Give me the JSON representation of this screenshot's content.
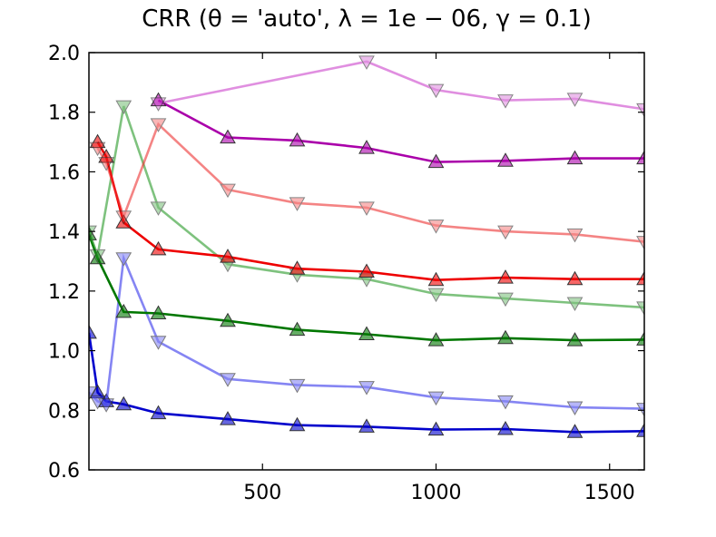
{
  "chart_data": {
    "type": "line",
    "title": "CRR (θ = 'auto', λ = 1e − 06, γ = 0.1)",
    "xlabel": "",
    "ylabel": "",
    "xlim": [
      0,
      1600
    ],
    "ylim": [
      0.6,
      2.0
    ],
    "x_ticks": [
      500,
      1000,
      1500
    ],
    "y_ticks": [
      0.6,
      0.8,
      1.0,
      1.2,
      1.4,
      1.6,
      1.8,
      2.0
    ],
    "grid": false,
    "legend": "none",
    "series": [
      {
        "color": "#0000cc",
        "marker": "triangle-up",
        "alpha": 1.0,
        "x": [
          0,
          25,
          50,
          100,
          200,
          400,
          600,
          800,
          1000,
          1200,
          1400,
          1600
        ],
        "y": [
          1.06,
          0.86,
          0.83,
          0.82,
          0.79,
          0.77,
          0.75,
          0.745,
          0.735,
          0.737,
          0.727,
          0.73
        ]
      },
      {
        "color": "#4444ee",
        "marker": "triangle-down",
        "alpha": 0.65,
        "x": [
          0,
          25,
          50,
          100,
          200,
          400,
          600,
          800,
          1000,
          1200,
          1400,
          1600
        ],
        "y": [
          0.86,
          0.83,
          0.82,
          1.31,
          1.03,
          0.905,
          0.885,
          0.878,
          0.843,
          0.83,
          0.81,
          0.805
        ]
      },
      {
        "color": "#007700",
        "marker": "triangle-up",
        "alpha": 1.0,
        "x": [
          0,
          25,
          100,
          200,
          400,
          600,
          800,
          1000,
          1200,
          1400,
          1600
        ],
        "y": [
          1.39,
          1.31,
          1.13,
          1.125,
          1.1,
          1.07,
          1.055,
          1.035,
          1.042,
          1.035,
          1.037
        ]
      },
      {
        "color": "#2a9a2a",
        "marker": "triangle-down",
        "alpha": 0.6,
        "x": [
          0,
          25,
          100,
          200,
          400,
          600,
          800,
          1000,
          1200,
          1400,
          1600
        ],
        "y": [
          1.4,
          1.32,
          1.82,
          1.48,
          1.29,
          1.255,
          1.24,
          1.19,
          1.175,
          1.16,
          1.145
        ]
      },
      {
        "color": "#ee0000",
        "marker": "triangle-up",
        "alpha": 1.0,
        "x": [
          25,
          50,
          100,
          200,
          400,
          600,
          800,
          1000,
          1200,
          1400,
          1600
        ],
        "y": [
          1.7,
          1.65,
          1.43,
          1.34,
          1.315,
          1.275,
          1.265,
          1.237,
          1.245,
          1.24,
          1.24
        ]
      },
      {
        "color": "#ee3333",
        "marker": "triangle-down",
        "alpha": 0.6,
        "x": [
          25,
          50,
          100,
          200,
          400,
          600,
          800,
          1000,
          1200,
          1400,
          1600
        ],
        "y": [
          1.68,
          1.63,
          1.45,
          1.76,
          1.54,
          1.495,
          1.48,
          1.42,
          1.4,
          1.39,
          1.365
        ]
      },
      {
        "color": "#aa00aa",
        "marker": "triangle-up",
        "alpha": 1.0,
        "x": [
          200,
          400,
          600,
          800,
          1000,
          1200,
          1400,
          1600
        ],
        "y": [
          1.84,
          1.715,
          1.705,
          1.68,
          1.633,
          1.637,
          1.645,
          1.645
        ]
      },
      {
        "color": "#cc44cc",
        "marker": "triangle-down",
        "alpha": 0.6,
        "x": [
          200,
          800,
          1000,
          1200,
          1400,
          1600
        ],
        "y": [
          1.83,
          1.97,
          1.875,
          1.84,
          1.845,
          1.81
        ]
      }
    ]
  }
}
